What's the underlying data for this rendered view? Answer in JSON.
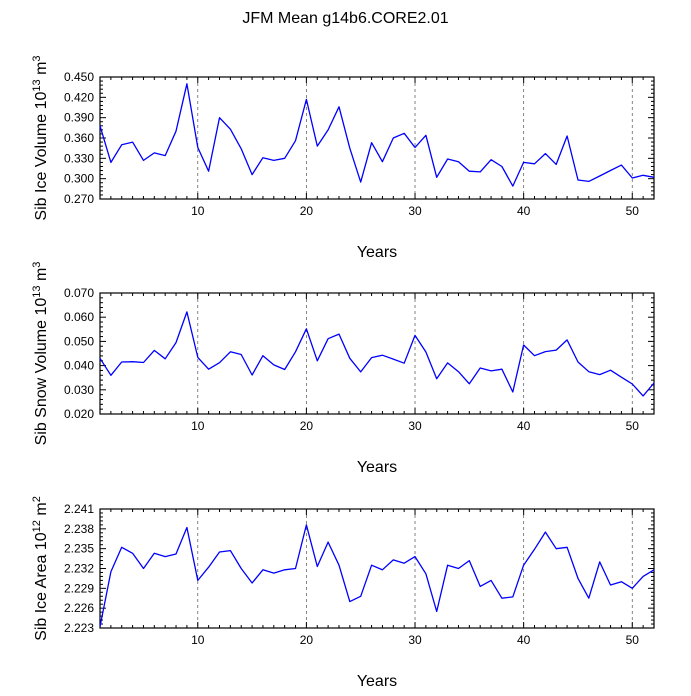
{
  "figure_title": "JFM Mean g14b6.CORE2.01",
  "colors": {
    "line": "#0000ff",
    "axis": "#000000",
    "grid": "#666666"
  },
  "chart_data": [
    {
      "type": "line",
      "title": "",
      "xlabel": "Years",
      "ylabel": "Sib Ice Volume 10",
      "ylabel_exp": "13",
      "ylabel_unit": " m",
      "ylabel_unit_exp": "3",
      "xlim": [
        1,
        52
      ],
      "ylim": [
        0.27,
        0.45
      ],
      "xticks": [
        10,
        20,
        30,
        40,
        50
      ],
      "xtick_labels": [
        "10",
        "20",
        "30",
        "40",
        "50"
      ],
      "yticks": [
        0.27,
        0.3,
        0.33,
        0.36,
        0.39,
        0.42,
        0.45
      ],
      "ytick_labels": [
        "0.270",
        "0.300",
        "0.330",
        "0.360",
        "0.390",
        "0.420",
        "0.450"
      ],
      "grid_x": true,
      "series": [
        {
          "name": "Sib Ice Volume",
          "x": [
            1,
            2,
            3,
            4,
            5,
            6,
            7,
            8,
            9,
            10,
            11,
            12,
            13,
            14,
            15,
            16,
            17,
            18,
            19,
            20,
            21,
            22,
            23,
            24,
            25,
            26,
            27,
            28,
            29,
            30,
            31,
            32,
            33,
            34,
            35,
            36,
            37,
            38,
            39,
            40,
            41,
            42,
            43,
            44,
            45,
            46,
            47,
            48,
            49,
            50,
            51,
            52
          ],
          "values": [
            0.378,
            0.324,
            0.35,
            0.354,
            0.327,
            0.338,
            0.334,
            0.37,
            0.44,
            0.346,
            0.311,
            0.39,
            0.373,
            0.344,
            0.306,
            0.331,
            0.327,
            0.33,
            0.356,
            0.417,
            0.348,
            0.372,
            0.406,
            0.345,
            0.295,
            0.353,
            0.325,
            0.36,
            0.367,
            0.346,
            0.364,
            0.302,
            0.329,
            0.325,
            0.311,
            0.31,
            0.328,
            0.318,
            0.289,
            0.324,
            0.322,
            0.337,
            0.321,
            0.363,
            0.298,
            0.296,
            0.304,
            0.312,
            0.32,
            0.301,
            0.305,
            0.302
          ]
        }
      ]
    },
    {
      "type": "line",
      "title": "",
      "xlabel": "Years",
      "ylabel": "Sib Snow Volume 10",
      "ylabel_exp": "13",
      "ylabel_unit": " m",
      "ylabel_unit_exp": "3",
      "xlim": [
        1,
        52
      ],
      "ylim": [
        0.02,
        0.07
      ],
      "xticks": [
        10,
        20,
        30,
        40,
        50
      ],
      "xtick_labels": [
        "10",
        "20",
        "30",
        "40",
        "50"
      ],
      "yticks": [
        0.02,
        0.03,
        0.04,
        0.05,
        0.06,
        0.07
      ],
      "ytick_labels": [
        "0.020",
        "0.030",
        "0.040",
        "0.050",
        "0.060",
        "0.070"
      ],
      "grid_x": true,
      "series": [
        {
          "name": "Sib Snow Volume",
          "x": [
            1,
            2,
            3,
            4,
            5,
            6,
            7,
            8,
            9,
            10,
            11,
            12,
            13,
            14,
            15,
            16,
            17,
            18,
            19,
            20,
            21,
            22,
            23,
            24,
            25,
            26,
            27,
            28,
            29,
            30,
            31,
            32,
            33,
            34,
            35,
            36,
            37,
            38,
            39,
            40,
            41,
            42,
            43,
            44,
            45,
            46,
            47,
            48,
            49,
            50,
            51,
            52
          ],
          "values": [
            0.043,
            0.036,
            0.0415,
            0.0416,
            0.0413,
            0.0463,
            0.0428,
            0.0495,
            0.0622,
            0.0434,
            0.0385,
            0.0412,
            0.0457,
            0.0446,
            0.0361,
            0.0441,
            0.0403,
            0.0384,
            0.0457,
            0.0552,
            0.042,
            0.0511,
            0.053,
            0.043,
            0.0374,
            0.0433,
            0.0443,
            0.0427,
            0.041,
            0.0525,
            0.0456,
            0.0346,
            0.0411,
            0.0375,
            0.0325,
            0.039,
            0.0378,
            0.0385,
            0.0291,
            0.0485,
            0.0441,
            0.0458,
            0.0464,
            0.0506,
            0.0415,
            0.0375,
            0.0363,
            0.0381,
            0.0352,
            0.0324,
            0.0275,
            0.0328
          ]
        }
      ]
    },
    {
      "type": "line",
      "title": "",
      "xlabel": "Years",
      "ylabel": "Sib Ice Area 10",
      "ylabel_exp": "12",
      "ylabel_unit": " m",
      "ylabel_unit_exp": "2",
      "xlim": [
        1,
        52
      ],
      "ylim": [
        2.223,
        2.241
      ],
      "xticks": [
        10,
        20,
        30,
        40,
        50
      ],
      "xtick_labels": [
        "10",
        "20",
        "30",
        "40",
        "50"
      ],
      "yticks": [
        2.223,
        2.226,
        2.229,
        2.232,
        2.235,
        2.238,
        2.241
      ],
      "ytick_labels": [
        "2.223",
        "2.226",
        "2.229",
        "2.232",
        "2.235",
        "2.238",
        "2.241"
      ],
      "grid_x": true,
      "series": [
        {
          "name": "Sib Ice Area",
          "x": [
            1,
            2,
            3,
            4,
            5,
            6,
            7,
            8,
            9,
            10,
            11,
            12,
            13,
            14,
            15,
            16,
            17,
            18,
            19,
            20,
            21,
            22,
            23,
            24,
            25,
            26,
            27,
            28,
            29,
            30,
            31,
            32,
            33,
            34,
            35,
            36,
            37,
            38,
            39,
            40,
            41,
            42,
            43,
            44,
            45,
            46,
            47,
            48,
            49,
            50,
            51,
            52
          ],
          "values": [
            2.2232,
            2.2315,
            2.2352,
            2.2343,
            2.232,
            2.2343,
            2.2338,
            2.2342,
            2.2382,
            2.2302,
            2.2322,
            2.2345,
            2.2347,
            2.232,
            2.2298,
            2.2318,
            2.2313,
            2.2318,
            2.232,
            2.2386,
            2.2323,
            2.236,
            2.2325,
            2.227,
            2.2278,
            2.2325,
            2.2318,
            2.2333,
            2.2328,
            2.2338,
            2.2312,
            2.2255,
            2.2325,
            2.232,
            2.2332,
            2.2293,
            2.2302,
            2.2275,
            2.2277,
            2.2325,
            2.2349,
            2.2375,
            2.235,
            2.2352,
            2.2305,
            2.2275,
            2.233,
            2.2295,
            2.23,
            2.229,
            2.2308,
            2.2318
          ]
        }
      ]
    }
  ]
}
